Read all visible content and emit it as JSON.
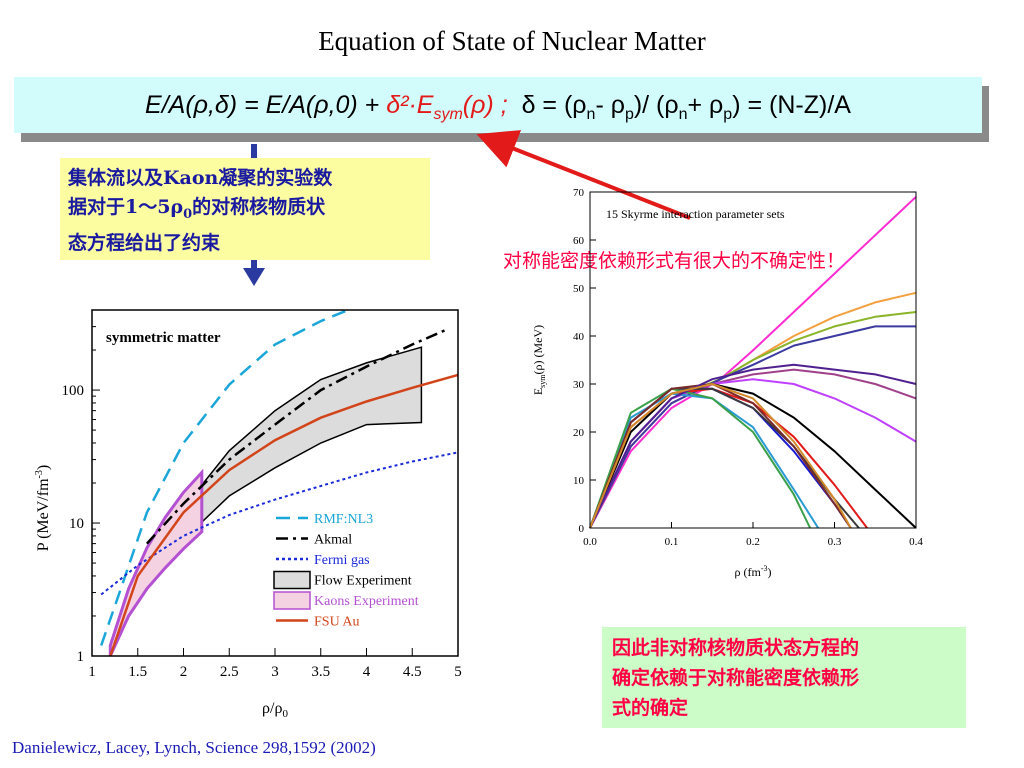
{
  "slide": {
    "title": "Equation of State of Nuclear Matter",
    "equation": {
      "lhs": "E/A(ρ,δ) = E/A(ρ,0) + ",
      "sym_term": "δ²·E",
      "sym_sub": "sym",
      "sym_arg": "(ρ) ;",
      "delta_def": "δ = (ρ",
      "d_n1": "n",
      "d_mid1": "- ρ",
      "d_p1": "p",
      "d_mid2": ")/ (ρ",
      "d_n2": "n",
      "d_mid3": "+ ρ",
      "d_p2": "p",
      "d_end": ") = (N-Z)/A"
    },
    "note_top_left": "集体流以及Kaon凝聚的实验数据对于1～5ρ0的对称核物质状态方程给出了约束",
    "note_top_left_lines": [
      "集体流以及Kaon凝聚的实验数",
      "据对于1～5ρ",
      "0",
      "的对称核物质状",
      "态方程给出了约束"
    ],
    "note_uncertainty": "对称能密度依赖形式有很大的不确定性！",
    "note_bottom_right_lines": [
      "因此非对称核物质状态方程的",
      "确定依赖于对称能密度依赖形",
      "式的确定"
    ],
    "citation": "Danielewicz, Lacey, Lynch, Science 298,1592 (2002)",
    "colors": {
      "eq_box": "#d2fbfb",
      "note_yellow": "#fcfca0",
      "note_green": "#ccfcc8",
      "arrow": "#e21a1a",
      "flow_arrow": "#2a3aa0"
    }
  },
  "chart_data": [
    {
      "type": "line",
      "annotation": "symmetric matter",
      "xlabel": "ρ/ρ0",
      "ylabel": "P (MeV/fm-3)",
      "xlim": [
        1,
        5
      ],
      "ylim": [
        1,
        400
      ],
      "yscale": "log",
      "xticks": [
        "1",
        "1.5",
        "2",
        "2.5",
        "3",
        "3.5",
        "4",
        "4.5",
        "5"
      ],
      "yticks": [
        "1",
        "10",
        "100"
      ],
      "legend_position": "bottom-right",
      "series": [
        {
          "name": "RMF:NL3",
          "color": "#1aa6d8",
          "style": "dashed",
          "x": [
            1.1,
            1.3,
            1.6,
            2.0,
            2.5,
            3.0,
            3.5,
            3.8
          ],
          "y": [
            1.2,
            3.0,
            12,
            40,
            110,
            220,
            330,
            400
          ]
        },
        {
          "name": "Akmal",
          "color": "#000000",
          "style": "dashdot",
          "x": [
            1.6,
            2.0,
            2.5,
            3.0,
            3.5,
            4.0,
            4.5,
            4.9
          ],
          "y": [
            7,
            14,
            30,
            55,
            100,
            150,
            220,
            290
          ]
        },
        {
          "name": "Fermi gas",
          "color": "#1a2ad8",
          "style": "dotted",
          "x": [
            1.1,
            1.5,
            2.0,
            2.5,
            3.0,
            3.5,
            4.0,
            4.5,
            5.0
          ],
          "y": [
            2.9,
            4.8,
            8.0,
            11.5,
            15,
            19,
            24,
            29,
            34
          ]
        },
        {
          "name": "FSU Au",
          "color": "#d2441a",
          "style": "solid",
          "x": [
            1.2,
            1.5,
            2.0,
            2.5,
            3.0,
            3.5,
            4.0,
            4.5,
            5.0
          ],
          "y": [
            1.0,
            4.0,
            12,
            25,
            42,
            62,
            82,
            104,
            130
          ]
        }
      ],
      "bands": [
        {
          "name": "Flow Experiment",
          "fill": "#dcdcdc",
          "stroke": "#000000",
          "x": [
            2.0,
            2.5,
            3.0,
            3.5,
            4.0,
            4.6
          ],
          "upper": [
            13,
            35,
            70,
            120,
            160,
            210
          ],
          "lower": [
            7.5,
            16,
            26,
            40,
            55,
            57
          ]
        },
        {
          "name": "Kaons Experiment",
          "fill": "#f4d2e2",
          "stroke": "#b450d2",
          "x": [
            1.2,
            1.4,
            1.6,
            1.8,
            2.0,
            2.2
          ],
          "upper": [
            1.2,
            3.2,
            6.5,
            11,
            17,
            24
          ],
          "lower": [
            1.0,
            2.0,
            3.2,
            4.6,
            6.4,
            8.6
          ]
        }
      ]
    },
    {
      "type": "line",
      "annotation": "15 Skyrme interaction parameter sets",
      "xlabel": "ρ (fm-3)",
      "ylabel": "Esym(ρ) (MeV)",
      "xlim": [
        0,
        0.4
      ],
      "ylim": [
        0,
        70
      ],
      "xticks": [
        "0.0",
        "0.1",
        "0.2",
        "0.3",
        "0.4"
      ],
      "yticks": [
        "0",
        "10",
        "20",
        "30",
        "40",
        "50",
        "60",
        "70"
      ],
      "series": [
        {
          "color": "#ff2cd2",
          "x": [
            0,
            0.05,
            0.1,
            0.16,
            0.2,
            0.25,
            0.3,
            0.35,
            0.4
          ],
          "y": [
            0,
            16,
            25,
            31,
            37,
            45,
            53,
            61,
            69
          ]
        },
        {
          "color": "#f4a040",
          "x": [
            0,
            0.05,
            0.1,
            0.16,
            0.2,
            0.25,
            0.3,
            0.35,
            0.4
          ],
          "y": [
            0,
            17,
            26,
            31,
            35,
            40,
            44,
            47,
            49
          ]
        },
        {
          "color": "#8ab42a",
          "x": [
            0,
            0.05,
            0.1,
            0.16,
            0.2,
            0.25,
            0.3,
            0.35,
            0.4
          ],
          "y": [
            0,
            18,
            27,
            31,
            35,
            39,
            42,
            44,
            45
          ]
        },
        {
          "color": "#3a3aa0",
          "x": [
            0,
            0.05,
            0.1,
            0.16,
            0.2,
            0.25,
            0.3,
            0.35,
            0.4
          ],
          "y": [
            0,
            17,
            26,
            31,
            34,
            38,
            40,
            42,
            42
          ]
        },
        {
          "color": "#a0408a",
          "x": [
            0,
            0.05,
            0.1,
            0.15,
            0.2,
            0.25,
            0.3,
            0.35,
            0.4
          ],
          "y": [
            0,
            18,
            27,
            30,
            32,
            33,
            32,
            30,
            27
          ]
        },
        {
          "color": "#c040ff",
          "x": [
            0,
            0.05,
            0.1,
            0.15,
            0.2,
            0.25,
            0.3,
            0.35,
            0.4
          ],
          "y": [
            0,
            18,
            27,
            30,
            31,
            30,
            27,
            23,
            18
          ]
        },
        {
          "color": "#000000",
          "x": [
            0,
            0.05,
            0.1,
            0.15,
            0.2,
            0.25,
            0.3,
            0.35,
            0.4
          ],
          "y": [
            0,
            20,
            28,
            30,
            28,
            23,
            16,
            8,
            0
          ]
        },
        {
          "color": "#e21a1a",
          "x": [
            0,
            0.05,
            0.1,
            0.15,
            0.2,
            0.25,
            0.3,
            0.34
          ],
          "y": [
            0,
            21,
            28,
            29,
            26,
            19,
            9,
            0
          ]
        },
        {
          "color": "#1a1ad2",
          "x": [
            0,
            0.05,
            0.1,
            0.15,
            0.2,
            0.25,
            0.3,
            0.32
          ],
          "y": [
            0,
            22,
            29,
            29,
            25,
            16,
            5,
            0
          ]
        },
        {
          "color": "#3a3a3a",
          "x": [
            0,
            0.05,
            0.1,
            0.15,
            0.2,
            0.25,
            0.3,
            0.33
          ],
          "y": [
            0,
            22,
            29,
            29,
            25,
            17,
            6,
            0
          ]
        },
        {
          "color": "#2a9ad2",
          "x": [
            0,
            0.05,
            0.1,
            0.15,
            0.2,
            0.25,
            0.28
          ],
          "y": [
            0,
            23,
            28,
            27,
            21,
            8,
            0
          ]
        },
        {
          "color": "#3aa04a",
          "x": [
            0,
            0.05,
            0.1,
            0.15,
            0.2,
            0.25,
            0.27
          ],
          "y": [
            0,
            24,
            29,
            27,
            20,
            7,
            0
          ]
        },
        {
          "color": "#7a2a2a",
          "x": [
            0,
            0.05,
            0.1,
            0.15,
            0.2,
            0.25,
            0.3,
            0.32
          ],
          "y": [
            0,
            22,
            29,
            30,
            26,
            17,
            5,
            0
          ]
        },
        {
          "color": "#502090",
          "x": [
            0,
            0.05,
            0.1,
            0.15,
            0.2,
            0.25,
            0.3,
            0.35,
            0.4
          ],
          "y": [
            0,
            18,
            27,
            31,
            33,
            34,
            33,
            32,
            30
          ]
        },
        {
          "color": "#d28a2a",
          "x": [
            0,
            0.05,
            0.1,
            0.15,
            0.2,
            0.25,
            0.3,
            0.32
          ],
          "y": [
            0,
            21,
            28,
            30,
            27,
            18,
            6,
            0
          ]
        }
      ]
    }
  ]
}
